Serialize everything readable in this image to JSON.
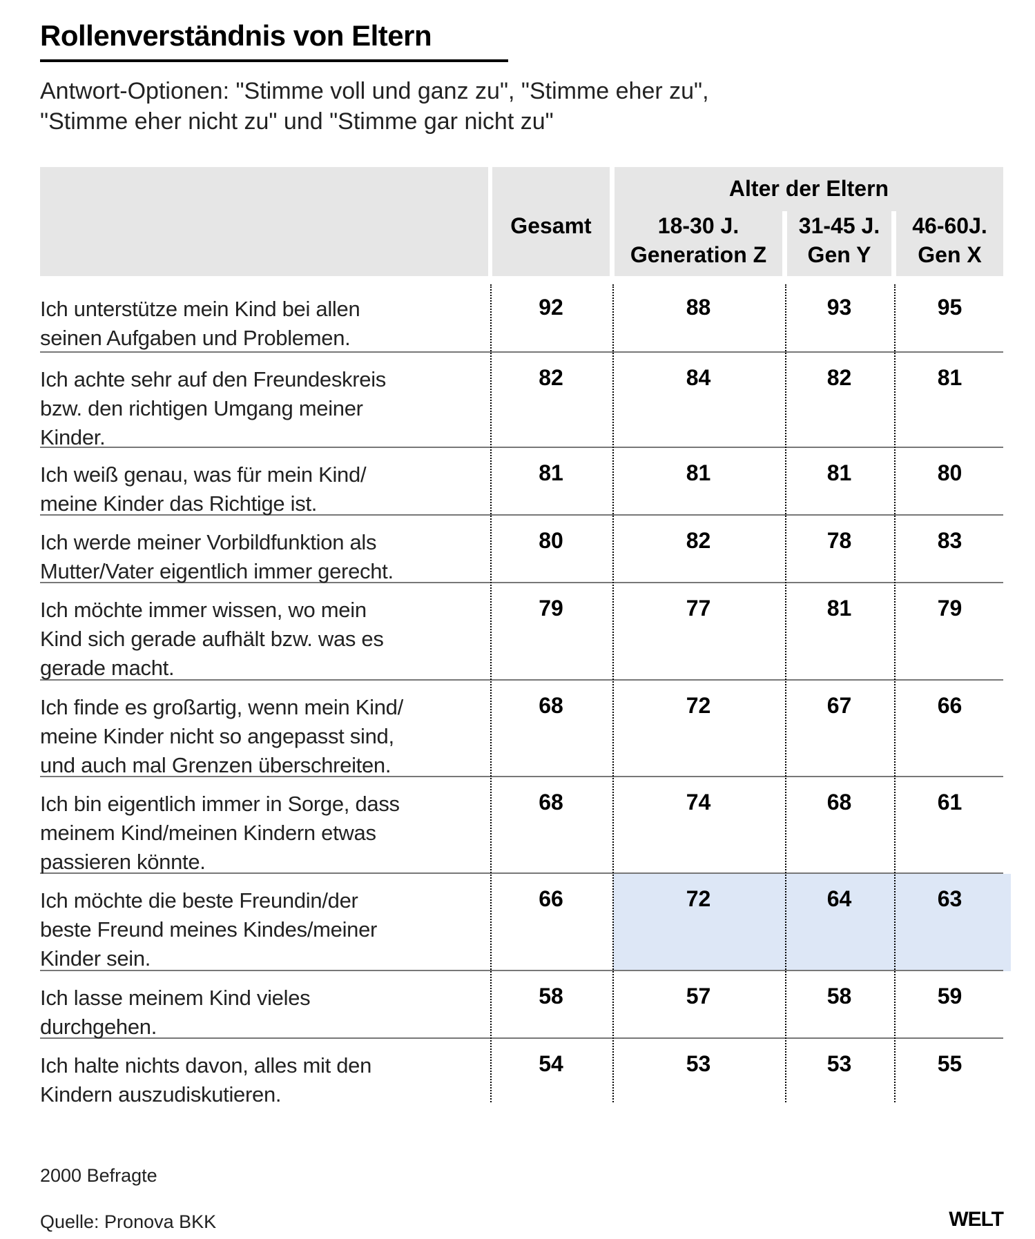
{
  "title": "Rollenverständnis von Eltern",
  "subtitle": [
    "Antwort-Optionen: \"Stimme voll und ganz zu\", \"Stimme eher zu\",",
    "\"Stimme eher nicht zu\" und \"Stimme gar nicht zu\""
  ],
  "footer": {
    "note": "2000 Befragte",
    "source": "Quelle: Pronova BKK",
    "logo": "WELT"
  },
  "chart_data": {
    "type": "table",
    "title": "Rollenverständnis von Eltern",
    "group_header": "Alter der Eltern",
    "columns": [
      [
        "Gesamt"
      ],
      [
        "18-30 J.",
        "Generation Z"
      ],
      [
        "31-45 J.",
        "Gen Y"
      ],
      [
        "46-60J.",
        "Gen X"
      ]
    ],
    "rows": [
      {
        "label": [
          "Ich unterstütze mein Kind bei allen",
          "seinen Aufgaben und Problemen."
        ],
        "values": [
          92,
          88,
          93,
          95
        ]
      },
      {
        "label": [
          "Ich achte sehr auf den Freundeskreis",
          "bzw. den richtigen Umgang meiner",
          "Kinder."
        ],
        "values": [
          82,
          84,
          82,
          81
        ]
      },
      {
        "label": [
          "Ich weiß genau, was für mein Kind/",
          "meine Kinder das Richtige ist."
        ],
        "values": [
          81,
          81,
          81,
          80
        ]
      },
      {
        "label": [
          "Ich werde meiner Vorbildfunktion als",
          "Mutter/Vater eigentlich immer gerecht."
        ],
        "values": [
          80,
          82,
          78,
          83
        ]
      },
      {
        "label": [
          "Ich möchte immer wissen, wo mein",
          "Kind sich gerade aufhält bzw. was es",
          "gerade macht."
        ],
        "values": [
          79,
          77,
          81,
          79
        ]
      },
      {
        "label": [
          "Ich finde es großartig, wenn mein Kind/",
          "meine Kinder nicht so angepasst sind,",
          "und auch mal Grenzen überschreiten."
        ],
        "values": [
          68,
          72,
          67,
          66
        ]
      },
      {
        "label": [
          "Ich bin eigentlich immer in Sorge, dass",
          "meinem Kind/meinen Kindern etwas",
          "passieren könnte."
        ],
        "values": [
          68,
          74,
          68,
          61
        ]
      },
      {
        "label": [
          "Ich möchte die beste Freundin/der",
          "beste Freund meines Kindes/meiner",
          "Kinder sein."
        ],
        "values": [
          66,
          72,
          64,
          63
        ],
        "highlight_age_columns": true
      },
      {
        "label": [
          "Ich lasse meinem Kind vieles",
          "durchgehen."
        ],
        "values": [
          58,
          57,
          58,
          59
        ]
      },
      {
        "label": [
          "Ich halte nichts davon, alles mit den",
          "Kindern auszudiskutieren."
        ],
        "values": [
          54,
          53,
          53,
          55
        ]
      }
    ],
    "highlight_color": "#dde7f6"
  }
}
